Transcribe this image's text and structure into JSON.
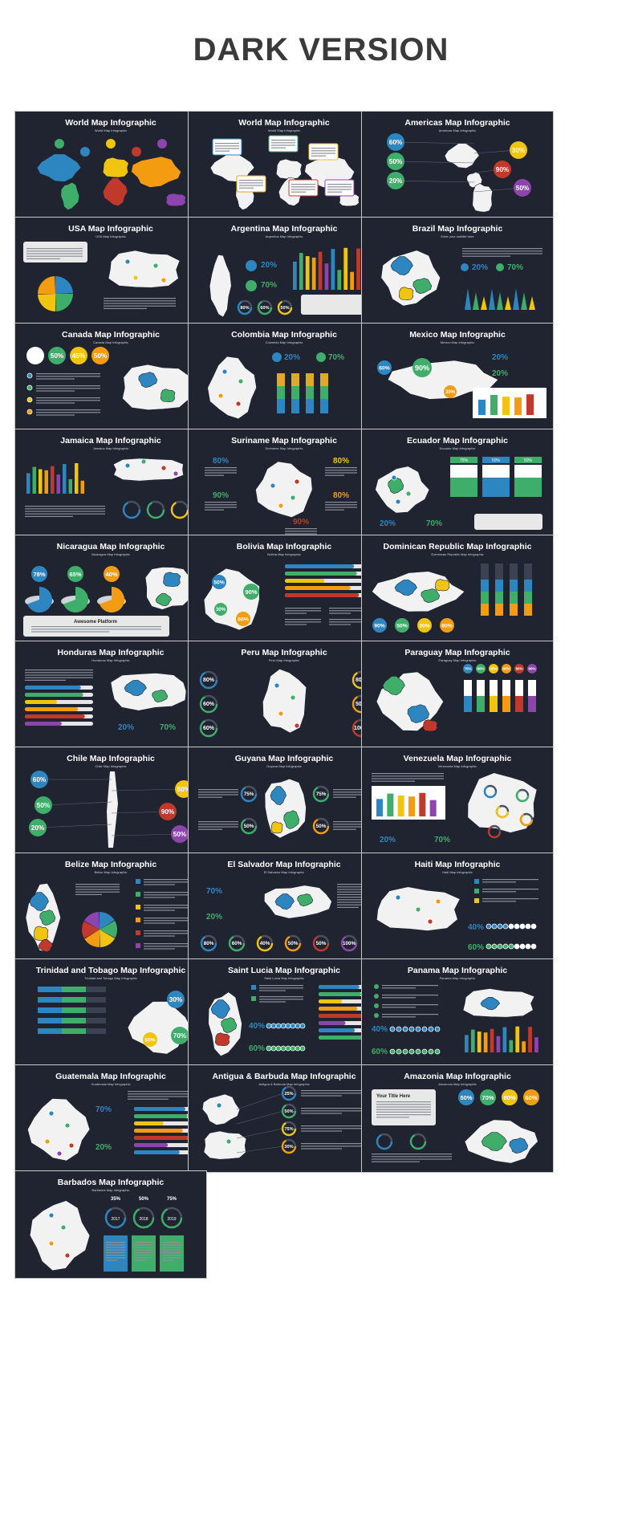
{
  "page": {
    "title": "DARK VERSION"
  },
  "colors": {
    "slide_bg": "#1f2430",
    "blue": "#2e86c1",
    "green": "#3fae6a",
    "yellow": "#f1c40f",
    "orange": "#f39c12",
    "red": "#c0392b",
    "purple": "#8e44ad",
    "map": "#f2f2f2"
  },
  "slides": [
    {
      "title": "World Map Infographic",
      "subtitle": "World Map Infographic",
      "art": "world-color"
    },
    {
      "title": "World Map Infographic",
      "subtitle": "World Map Infographic",
      "art": "world-callouts"
    },
    {
      "title": "Americas Map Infographic",
      "subtitle": "Americas Map Infographic",
      "art": "americas",
      "values": [
        "60%",
        "30%",
        "50%",
        "90%",
        "20%",
        "50%"
      ]
    },
    {
      "title": "USA Map Infographic",
      "subtitle": "USA Map Infographic",
      "art": "usa"
    },
    {
      "title": "Argentina Map Infographic",
      "subtitle": "Argentina Map Infographic",
      "art": "argentina",
      "values": [
        "20%",
        "70%",
        "80%",
        "60%",
        "50%"
      ]
    },
    {
      "title": "Brazil Map Infographic",
      "subtitle": "Enter your subtitle here",
      "art": "brazil",
      "values": [
        "20%",
        "70%"
      ]
    },
    {
      "title": "Canada Map Infographic",
      "subtitle": "Canada Map Infographic",
      "art": "canada",
      "values": [
        "75%",
        "50%",
        "45%",
        "50%"
      ]
    },
    {
      "title": "Colombia Map Infographic",
      "subtitle": "Colombia Map Infographic",
      "art": "colombia",
      "values": [
        "20%",
        "70%"
      ]
    },
    {
      "title": "Mexico Map Infographic",
      "subtitle": "Mexico Map Infographic",
      "art": "mexico",
      "values": [
        "90%",
        "60%",
        "30%",
        "20%",
        "20%"
      ]
    },
    {
      "title": "Jamaica Map Infographic",
      "subtitle": "Jamaica Map Infographic",
      "art": "jamaica"
    },
    {
      "title": "Suriname Map Infographic",
      "subtitle": "Suriname Map Infographic",
      "art": "suriname",
      "values": [
        "80%",
        "80%",
        "90%",
        "80%",
        "90%"
      ]
    },
    {
      "title": "Ecuador Map Infographic",
      "subtitle": "Ecuador Map Infographic",
      "art": "ecuador",
      "values": [
        "75%",
        "50%",
        "50%",
        "20%",
        "70%"
      ]
    },
    {
      "title": "Nicaragua Map Infographic",
      "subtitle": "Nicaragua Map Infographic",
      "art": "nicaragua",
      "values": [
        "78%",
        "65%",
        "40%"
      ],
      "label": "Awesome Platform"
    },
    {
      "title": "Bolivia Map Infographic",
      "subtitle": "Bolivia Map Infographic",
      "art": "bolivia",
      "values": [
        "50%",
        "90%",
        "30%",
        "60%"
      ]
    },
    {
      "title": "Dominican Republic Map Infographic",
      "subtitle": "Dominican Republic Map Infographic",
      "art": "dominican",
      "values": [
        "90%",
        "50%",
        "30%",
        "80%"
      ]
    },
    {
      "title": "Honduras Map Infographic",
      "subtitle": "Honduras Map Infographic",
      "art": "honduras",
      "values": [
        "20%",
        "70%"
      ]
    },
    {
      "title": "Peru Map Infographic",
      "subtitle": "Peru Map Infographic",
      "art": "peru",
      "values": [
        "80%",
        "60%",
        "60%",
        "80%",
        "50%",
        "100%"
      ]
    },
    {
      "title": "Paraguay Map Infographic",
      "subtitle": "Paraguay Map Infographic",
      "art": "paraguay",
      "values": [
        "70%",
        "80%",
        "60%",
        "60%",
        "80%",
        "60%"
      ]
    },
    {
      "title": "Chile Map Infographic",
      "subtitle": "Chile Map Infographic",
      "art": "chile",
      "values": [
        "60%",
        "50%",
        "50%",
        "90%",
        "20%",
        "50%"
      ]
    },
    {
      "title": "Guyana Map Infographic",
      "subtitle": "Guyana Map Infographic",
      "art": "guyana",
      "values": [
        "75%",
        "75%",
        "50%",
        "50%"
      ]
    },
    {
      "title": "Venezuela Map Infographic",
      "subtitle": "Venezuela Map Infographic",
      "art": "venezuela",
      "values": [
        "20%",
        "70%"
      ]
    },
    {
      "title": "Belize Map Infographic",
      "subtitle": "Belize Map Infographic",
      "art": "belize"
    },
    {
      "title": "El Salvador Map Infographic",
      "subtitle": "El Salvador Map Infographic",
      "art": "salvador",
      "values": [
        "70%",
        "20%",
        "80%",
        "60%",
        "40%",
        "50%",
        "50%",
        "100%"
      ]
    },
    {
      "title": "Haiti Map Infographic",
      "subtitle": "Haiti Map Infographic",
      "art": "haiti",
      "values": [
        "40%",
        "60%"
      ]
    },
    {
      "title": "Trinidad and Tobago Map Infographic",
      "subtitle": "Trinidad and Tobago Map Infographic",
      "art": "trinidad",
      "values": [
        "30%",
        "70%",
        "50%"
      ]
    },
    {
      "title": "Saint Lucia Map Infographic",
      "subtitle": "Saint Lucia Map Infographic",
      "art": "stlucia",
      "values": [
        "40%",
        "60%"
      ]
    },
    {
      "title": "Panama Map Infographic",
      "subtitle": "Panama Map Infographic",
      "art": "panama",
      "values": [
        "40%",
        "60%"
      ]
    },
    {
      "title": "Guatemala Map Infographic",
      "subtitle": "Guatemala Map Infographic",
      "art": "guatemala",
      "values": [
        "70%",
        "20%"
      ]
    },
    {
      "title": "Antigua & Barbuda Map Infographic",
      "subtitle": "Antigua & Barbuda Map Infographic",
      "art": "antigua",
      "values": [
        "25%",
        "50%",
        "75%",
        "30%"
      ]
    },
    {
      "title": "Amazonia Map Infographic",
      "subtitle": "Amazonia Map Infographic",
      "art": "amazonia",
      "values": [
        "50%",
        "70%",
        "80%",
        "60%"
      ],
      "label": "Your Title Here"
    },
    {
      "title": "Barbados Map Infographic",
      "subtitle": "Barbados Map Infographic",
      "art": "barbados",
      "values": [
        "35%",
        "50%",
        "75%"
      ],
      "years": [
        "2017",
        "2018",
        "2019"
      ]
    }
  ]
}
